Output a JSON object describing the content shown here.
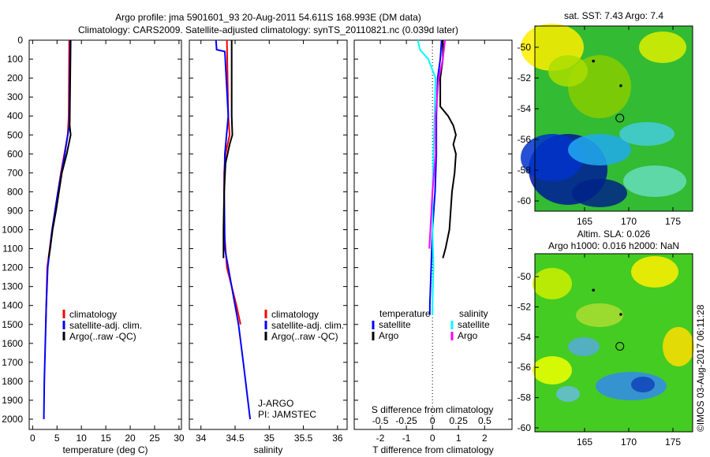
{
  "title_line1": "Argo profile: jma 5901601_93 20-Aug-2011 54.611S 168.993E (DM data)",
  "title_line2": "Climatology: CARS2009. Satellite-adjusted climatology: synTS_20110821.nc (0.039d later)",
  "copyright": "©IMOS 03-Aug-2017 06:11:28",
  "colors": {
    "climatology": "#ff0000",
    "satellite": "#0000ff",
    "argo": "#000000",
    "sal_satellite": "#00ffff",
    "sal_argo": "#ff00ff"
  },
  "chart_data": [
    {
      "type": "line",
      "name": "temperature",
      "xlabel": "temperature (deg C)",
      "xlim": [
        -0.7,
        30.5
      ],
      "ylim": [
        2000,
        0
      ],
      "xticks": [
        "0",
        "5",
        "10",
        "15",
        "20",
        "25",
        "30"
      ],
      "yticks": [
        "0",
        "100",
        "200",
        "300",
        "400",
        "500",
        "600",
        "700",
        "800",
        "900",
        "1000",
        "1100",
        "1200",
        "1300",
        "1400",
        "1500",
        "1600",
        "1700",
        "1800",
        "1900",
        "2000"
      ],
      "legend": [
        "climatology",
        "satellite-adj. clim.",
        "Argo(..raw -QC)"
      ],
      "series": [
        {
          "name": "climatology",
          "color": "#ff0000",
          "depth": [
            0,
            400,
            500,
            600,
            700,
            800,
            900,
            1000,
            1100,
            1200,
            1300,
            1400,
            1500
          ],
          "values": [
            7.5,
            7.4,
            7.2,
            6.5,
            5.8,
            5.2,
            4.6,
            4.0,
            3.5,
            3.0,
            2.9,
            2.8,
            2.7
          ]
        },
        {
          "name": "satellite-adj. clim.",
          "color": "#0000ff",
          "depth": [
            0,
            450,
            600,
            800,
            1000,
            1200,
            1400,
            1600,
            1800,
            2000
          ],
          "values": [
            7.7,
            7.5,
            6.6,
            5.2,
            4.0,
            3.1,
            2.8,
            2.6,
            2.4,
            2.3
          ]
        },
        {
          "name": "Argo(..raw -QC)",
          "color": "#000000",
          "depth": [
            0,
            450,
            500,
            600,
            700,
            800,
            900,
            1000,
            1100,
            1150
          ],
          "values": [
            7.8,
            7.6,
            7.8,
            7.0,
            6.0,
            5.4,
            4.8,
            4.1,
            3.6,
            3.3
          ]
        }
      ]
    },
    {
      "type": "line",
      "name": "salinity",
      "xlabel": "salinity",
      "xlim": [
        33.83,
        36.14
      ],
      "ylim": [
        2000,
        0
      ],
      "xticks": [
        "34",
        "34.5",
        "35",
        "35.5",
        "36"
      ],
      "legend": [
        "climatology",
        "satellite-adj. clim.",
        "Argo(..raw -QC)"
      ],
      "annotation": [
        "J-ARGO",
        "PI: JAMSTEC"
      ],
      "series": [
        {
          "name": "climatology",
          "color": "#ff0000",
          "depth": [
            0,
            400,
            500,
            600,
            700,
            1000,
            1200,
            1300,
            1400,
            1500
          ],
          "values": [
            34.38,
            34.4,
            34.42,
            34.36,
            34.34,
            34.34,
            34.38,
            34.45,
            34.52,
            34.58
          ]
        },
        {
          "name": "satellite-adj. clim.",
          "color": "#0000ff",
          "depth": [
            0,
            50,
            60,
            400,
            600,
            800,
            1100,
            1300,
            1500,
            1700,
            2000
          ],
          "values": [
            34.22,
            34.23,
            34.35,
            34.4,
            34.35,
            34.34,
            34.35,
            34.45,
            34.55,
            34.62,
            34.72
          ]
        },
        {
          "name": "Argo(..raw -QC)",
          "color": "#000000",
          "depth": [
            0,
            400,
            500,
            550,
            650,
            800,
            1000,
            1150
          ],
          "values": [
            34.45,
            34.45,
            34.46,
            34.42,
            34.36,
            34.34,
            34.33,
            34.33
          ]
        }
      ]
    },
    {
      "type": "line",
      "name": "difference",
      "xlabel": "T difference from climatology",
      "x2label": "S difference from climatology",
      "xlim": [
        -3,
        3.05
      ],
      "ylim": [
        2000,
        0
      ],
      "xticks": [
        "-2",
        "-1",
        "0",
        "1",
        "2"
      ],
      "x2ticks": [
        "-0.5",
        "-0.25",
        "0",
        "0.25",
        "0.5"
      ],
      "legend_titles": [
        "temperature",
        "salinity"
      ],
      "legend": [
        "satellite",
        "Argo",
        "satellite",
        "Argo"
      ],
      "series": [
        {
          "name": "temperature satellite",
          "color": "#0000ff",
          "depth": [
            0,
            100,
            200,
            400,
            600,
            800,
            1000,
            1200,
            1400,
            1450
          ],
          "values": [
            0.35,
            0.3,
            0.2,
            0.15,
            0.15,
            0.1,
            0.0,
            -0.05,
            -0.1,
            -0.1
          ]
        },
        {
          "name": "temperature Argo",
          "color": "#000000",
          "depth": [
            0,
            100,
            200,
            350,
            400,
            450,
            500,
            550,
            600,
            700,
            800,
            900,
            1000,
            1100,
            1150
          ],
          "values": [
            0.4,
            0.4,
            0.3,
            0.3,
            0.6,
            0.8,
            0.9,
            0.8,
            0.9,
            0.85,
            0.75,
            0.7,
            0.65,
            0.5,
            0.4
          ]
        },
        {
          "name": "salinity satellite",
          "color": "#00ffff",
          "scale": "S",
          "depth": [
            0,
            50,
            100,
            200,
            400,
            600,
            800,
            1000,
            1200,
            1400,
            1450
          ],
          "values": [
            -0.14,
            -0.12,
            -0.04,
            0.03,
            0.02,
            0.01,
            0.0,
            0.0,
            0.01,
            0.0,
            0.0
          ]
        },
        {
          "name": "salinity Argo",
          "color": "#ff00ff",
          "scale": "S",
          "depth": [
            0,
            100,
            200,
            400,
            600,
            800,
            1000,
            1100
          ],
          "values": [
            0.12,
            0.1,
            0.06,
            0.03,
            0.03,
            0.0,
            -0.02,
            -0.03
          ]
        }
      ]
    },
    {
      "type": "heatmap",
      "name": "sst-map",
      "title": "sat. SST: 7.43 Argo: 7.4",
      "xticks": [
        "165",
        "170",
        "175"
      ],
      "yticks": [
        "-50",
        "-52",
        "-54",
        "-56",
        "-58",
        "-60"
      ]
    },
    {
      "type": "heatmap",
      "name": "sla-map",
      "title1": "Altim. SLA: 0.026",
      "title2": "Argo h1000: 0.016 h2000: NaN",
      "xticks": [
        "165",
        "170",
        "175"
      ],
      "yticks": [
        "-50",
        "-52",
        "-54",
        "-56",
        "-58",
        "-60"
      ]
    }
  ]
}
